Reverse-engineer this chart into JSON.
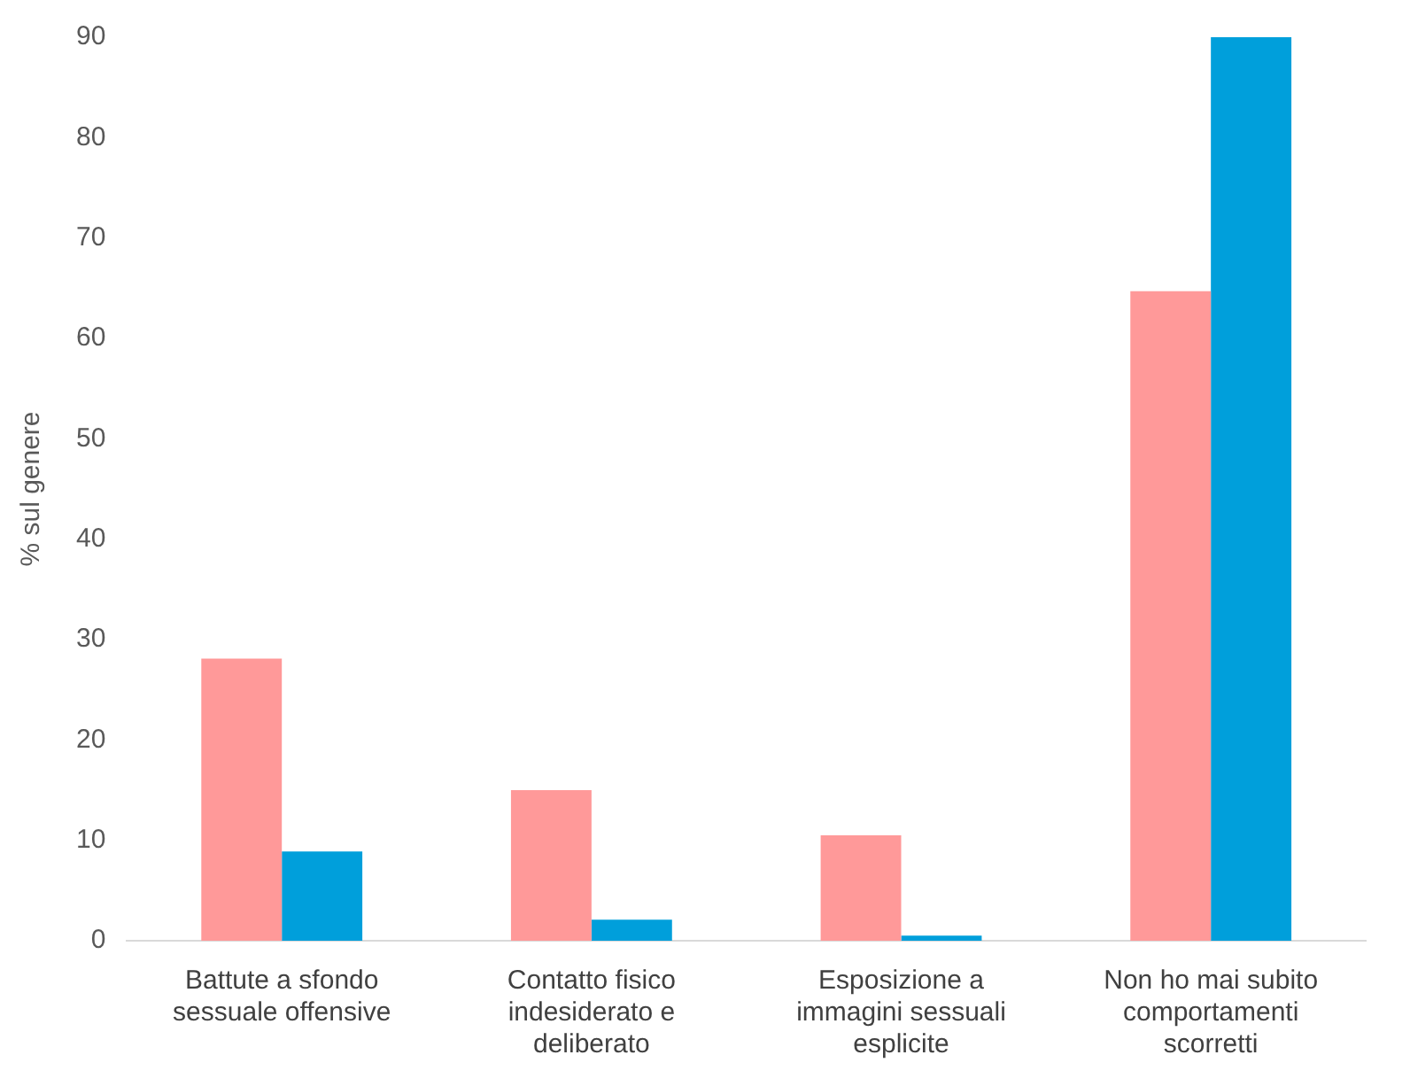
{
  "chart_data": {
    "type": "bar",
    "ylabel": "% sul genere",
    "categories": [
      "Battute a sfondo sessuale offensive",
      "Contatto fisico indesiderato e deliberato",
      "Esposizione a immagini sessuali esplicite",
      "Non ho mai subito comportamenti scorretti"
    ],
    "series": [
      {
        "color": "#ff9999",
        "values": [
          28.1,
          15.0,
          10.5,
          64.7
        ]
      },
      {
        "color": "#009fdb",
        "values": [
          8.9,
          2.1,
          0.5,
          90
        ]
      }
    ],
    "ylim": [
      0,
      90
    ],
    "yticks": [
      0,
      10,
      20,
      30,
      40,
      50,
      60,
      70,
      80,
      90
    ],
    "grid": false,
    "legend": false
  }
}
